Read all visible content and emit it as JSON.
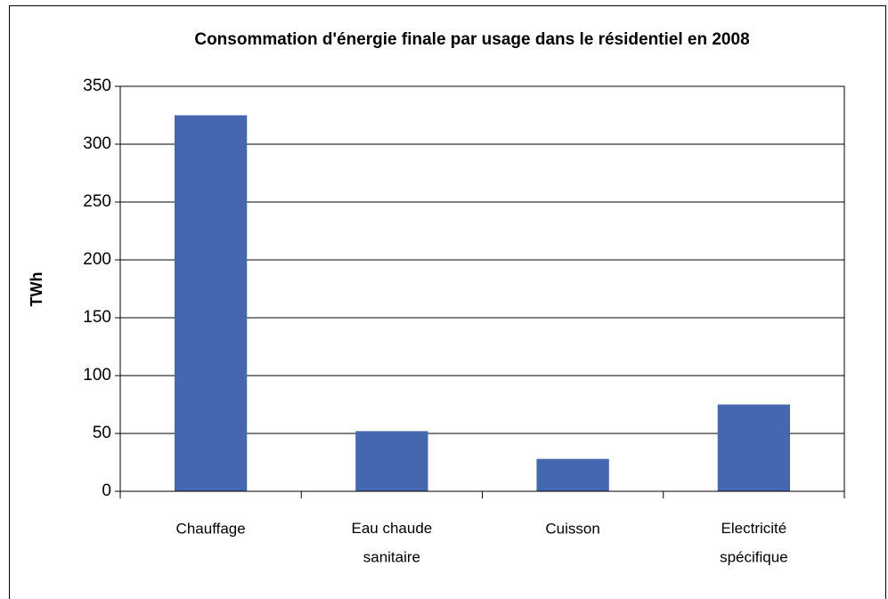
{
  "chart_data": {
    "type": "bar",
    "title": "Consommation d'énergie finale par usage dans le résidentiel en 2008",
    "y_label": "TWh",
    "categories": [
      "Chauffage",
      "Eau chaude\nsanitaire",
      "Cuisson",
      "Electricité\nspécifique"
    ],
    "values": [
      325,
      52,
      28,
      75
    ],
    "color": "#4567b0",
    "ylim": [
      0,
      350
    ],
    "yticks": [
      0,
      50,
      100,
      150,
      200,
      250,
      300,
      350
    ],
    "grid": true
  }
}
